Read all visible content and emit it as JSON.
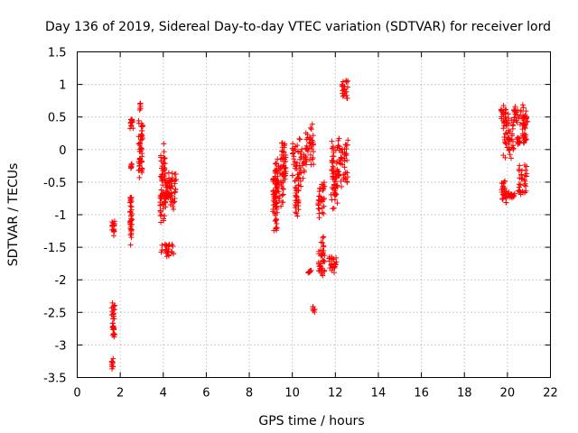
{
  "chart_data": {
    "type": "scatter",
    "title": "Day 136 of 2019, Sidereal Day-to-day VTEC variation (SDTVAR) for receiver lord",
    "xlabel": "GPS time / hours",
    "ylabel": "SDTVAR / TECUs",
    "xlim": [
      0,
      22
    ],
    "ylim": [
      -3.5,
      1.5
    ],
    "xticks": [
      "0",
      "2",
      "4",
      "6",
      "8",
      "10",
      "12",
      "14",
      "16",
      "18",
      "20",
      "22"
    ],
    "yticks": [
      "1.5",
      "1",
      "0.5",
      "0",
      "-0.5",
      "-1",
      "-1.5",
      "-2",
      "-2.5",
      "-3",
      "-3.5"
    ],
    "grid": true,
    "marker": "+",
    "color": "#ff0000",
    "series": [
      {
        "name": "SDTVAR",
        "segments": [
          [
            1.6,
            1.75,
            -1.35,
            -1.05
          ],
          [
            1.6,
            1.75,
            -2.95,
            -2.3
          ],
          [
            1.6,
            1.7,
            -3.4,
            -3.2
          ],
          [
            2.45,
            2.55,
            -1.5,
            -0.6
          ],
          [
            2.45,
            2.55,
            -0.3,
            -0.2
          ],
          [
            2.45,
            2.6,
            0.3,
            0.5
          ],
          [
            2.85,
            3.05,
            -0.55,
            0.55
          ],
          [
            2.9,
            2.95,
            0.6,
            0.75
          ],
          [
            3.85,
            4.1,
            -1.2,
            0.15
          ],
          [
            3.9,
            4.5,
            -1.65,
            -1.4
          ],
          [
            4.0,
            4.6,
            -1.0,
            -0.3
          ],
          [
            4.1,
            4.4,
            -0.8,
            -0.4
          ],
          [
            9.1,
            9.3,
            -1.35,
            -0.1
          ],
          [
            9.2,
            9.6,
            -1.0,
            0.0
          ],
          [
            9.5,
            9.7,
            -0.6,
            0.2
          ],
          [
            10.0,
            10.6,
            -0.6,
            0.2
          ],
          [
            10.1,
            10.3,
            -1.05,
            -0.4
          ],
          [
            10.6,
            11.0,
            -0.3,
            0.4
          ],
          [
            10.7,
            10.9,
            -1.9,
            -1.85
          ],
          [
            10.95,
            11.05,
            -2.5,
            -2.4
          ],
          [
            11.2,
            11.5,
            -1.05,
            -0.45
          ],
          [
            11.2,
            11.5,
            -2.05,
            -1.3
          ],
          [
            11.7,
            12.05,
            -1.9,
            -1.6
          ],
          [
            11.8,
            12.1,
            -1.0,
            0.2
          ],
          [
            12.1,
            12.6,
            -0.6,
            0.25
          ],
          [
            12.3,
            12.6,
            0.75,
            1.1
          ],
          [
            19.7,
            19.95,
            -0.85,
            -0.45
          ],
          [
            19.7,
            20.1,
            0.35,
            0.7
          ],
          [
            19.8,
            20.3,
            -0.2,
            0.5
          ],
          [
            20.0,
            20.4,
            -0.75,
            -0.65
          ],
          [
            20.3,
            20.8,
            0.35,
            0.7
          ],
          [
            20.4,
            20.6,
            0.05,
            0.2
          ],
          [
            20.5,
            20.9,
            -0.75,
            -0.2
          ],
          [
            20.7,
            20.95,
            0.0,
            0.6
          ]
        ]
      }
    ]
  }
}
